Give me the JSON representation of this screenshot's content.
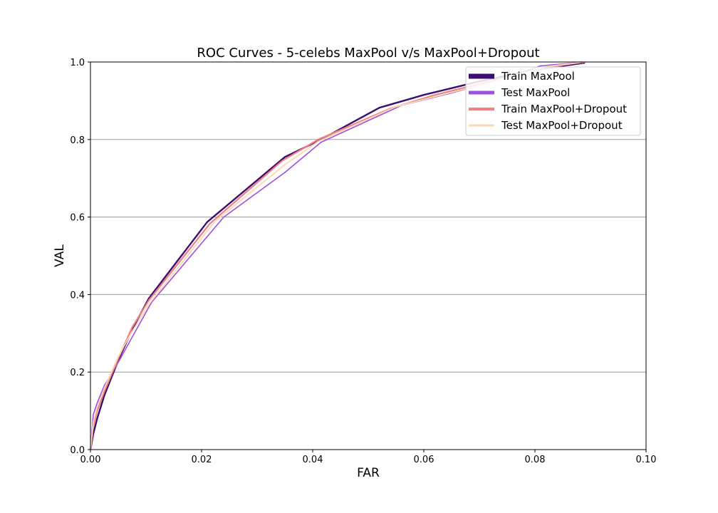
{
  "chart_data": {
    "type": "line",
    "title": "ROC Curves - 5-celebs MaxPool v/s MaxPool+Dropout",
    "xlabel": "FAR",
    "ylabel": "VAL",
    "xlim": [
      0.0,
      0.1
    ],
    "ylim": [
      0.0,
      1.0
    ],
    "xticks": [
      "0.00",
      "0.02",
      "0.04",
      "0.06",
      "0.08",
      "0.10"
    ],
    "yticks": [
      "0.0",
      "0.2",
      "0.4",
      "0.6",
      "0.8",
      "1.0"
    ],
    "grid": "horizontal",
    "legend_position": "top-right",
    "series": [
      {
        "name": "Train MaxPool",
        "color": "#3b0f70",
        "x": [
          0.0,
          0.0005,
          0.0012,
          0.0025,
          0.005,
          0.0075,
          0.0105,
          0.021,
          0.035,
          0.0415,
          0.052,
          0.06,
          0.07,
          0.08,
          0.089
        ],
        "y": [
          0.0,
          0.04,
          0.08,
          0.14,
          0.23,
          0.31,
          0.39,
          0.587,
          0.755,
          0.8,
          0.882,
          0.915,
          0.95,
          0.98,
          0.998
        ]
      },
      {
        "name": "Test MaxPool",
        "color": "#9b51e0",
        "x": [
          0.0,
          0.0005,
          0.0012,
          0.0025,
          0.005,
          0.0075,
          0.011,
          0.024,
          0.035,
          0.0415,
          0.056,
          0.065,
          0.075,
          0.081,
          0.089
        ],
        "y": [
          0.0,
          0.09,
          0.12,
          0.165,
          0.225,
          0.29,
          0.38,
          0.6,
          0.715,
          0.793,
          0.888,
          0.92,
          0.96,
          0.99,
          1.0
        ]
      },
      {
        "name": "Train MaxPool+Dropout",
        "color": "#f08080",
        "x": [
          0.0,
          0.0005,
          0.0012,
          0.0025,
          0.005,
          0.0075,
          0.0105,
          0.0215,
          0.0345,
          0.041,
          0.054,
          0.062,
          0.072,
          0.081,
          0.0885
        ],
        "y": [
          0.0,
          0.06,
          0.1,
          0.15,
          0.235,
          0.315,
          0.385,
          0.583,
          0.745,
          0.8,
          0.88,
          0.915,
          0.95,
          0.983,
          1.0
        ]
      },
      {
        "name": "Test MaxPool+Dropout",
        "color": "#fcd8b8",
        "x": [
          0.0,
          0.0005,
          0.0012,
          0.0025,
          0.005,
          0.0075,
          0.0108,
          0.0225,
          0.035,
          0.041,
          0.055,
          0.064,
          0.074,
          0.082,
          0.089
        ],
        "y": [
          0.0,
          0.07,
          0.11,
          0.158,
          0.24,
          0.305,
          0.38,
          0.59,
          0.735,
          0.795,
          0.885,
          0.918,
          0.955,
          0.988,
          1.0
        ]
      }
    ]
  }
}
